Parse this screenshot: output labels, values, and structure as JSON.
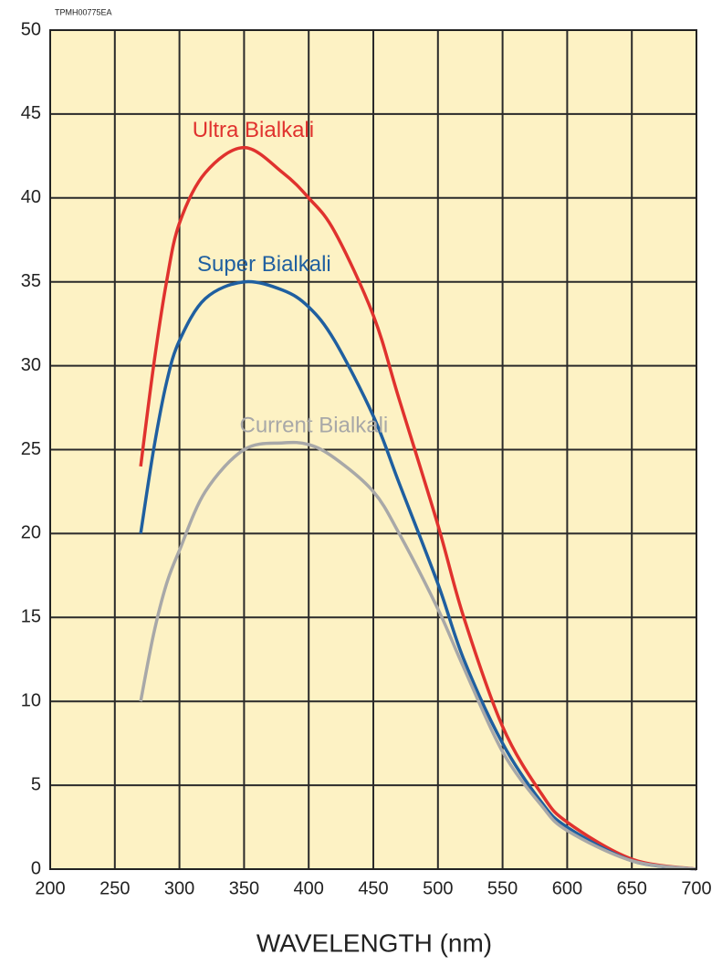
{
  "chart_data": {
    "type": "line",
    "note": "TPMH00775EA",
    "x_label": "WAVELENGTH (nm)",
    "x": [
      270,
      280,
      290,
      300,
      320,
      350,
      380,
      400,
      420,
      450,
      470,
      500,
      520,
      550,
      580,
      600,
      650,
      700
    ],
    "series": [
      {
        "name": "Ultra Bialkali",
        "color": "#e0322e",
        "values": [
          24,
          30,
          35,
          38.5,
          41.5,
          43,
          41.5,
          40,
          38,
          33,
          28,
          20.5,
          15,
          8.5,
          4.5,
          2.8,
          0.6,
          0
        ]
      },
      {
        "name": "Super Bialkali",
        "color": "#1f5fa0",
        "values": [
          20,
          25,
          29,
          31.5,
          34,
          35,
          34.5,
          33.5,
          31.5,
          27,
          23,
          17,
          12.5,
          7.5,
          4,
          2.5,
          0.5,
          0
        ]
      },
      {
        "name": "Current Bialkali",
        "color": "#a8a8a8",
        "values": [
          10,
          14,
          17,
          19,
          22.5,
          25,
          25.4,
          25.3,
          24.5,
          22.5,
          20,
          15.5,
          12,
          7,
          3.8,
          2.3,
          0.5,
          0
        ]
      }
    ],
    "xlim": [
      200,
      700
    ],
    "xticks": [
      200,
      250,
      300,
      350,
      400,
      450,
      500,
      550,
      600,
      650,
      700
    ],
    "ylim": [
      0,
      50
    ],
    "yticks": [
      0,
      5,
      10,
      15,
      20,
      25,
      30,
      35,
      40,
      45,
      50
    ],
    "grid": true,
    "background": "#fdf2c4"
  }
}
